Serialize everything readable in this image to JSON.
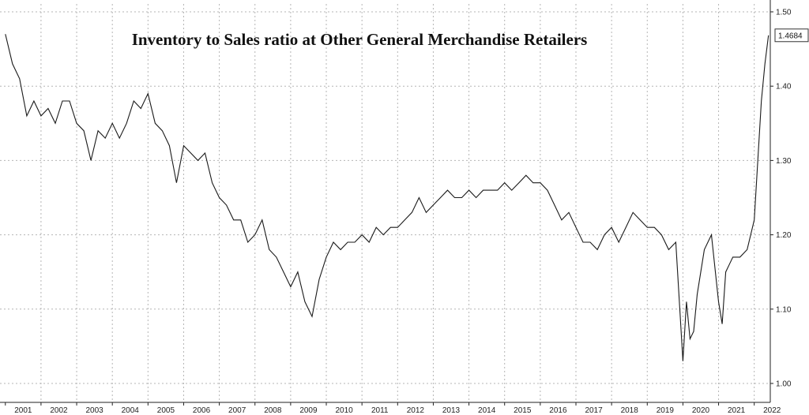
{
  "chart_data": {
    "type": "line",
    "title": "Inventory to Sales ratio at Other General Merchandise Retailers",
    "xlabel": "",
    "ylabel": "",
    "ylim": [
      1.0,
      1.5
    ],
    "y_ticks": [
      "1.00",
      "1.10",
      "1.20",
      "1.30",
      "1.40",
      "1.50"
    ],
    "x_ticks": [
      "2001",
      "2002",
      "2003",
      "2004",
      "2005",
      "2006",
      "2007",
      "2008",
      "2009",
      "2010",
      "2011",
      "2012",
      "2013",
      "2014",
      "2015",
      "2016",
      "2017",
      "2018",
      "2019",
      "2020",
      "2021",
      "2022"
    ],
    "grid": true,
    "last_value_label": "1.4684",
    "series": [
      {
        "name": "Inventory to Sales ratio",
        "x": [
          2001.0,
          2001.2,
          2001.4,
          2001.6,
          2001.8,
          2002.0,
          2002.2,
          2002.4,
          2002.6,
          2002.8,
          2003.0,
          2003.2,
          2003.4,
          2003.6,
          2003.8,
          2004.0,
          2004.2,
          2004.4,
          2004.6,
          2004.8,
          2005.0,
          2005.2,
          2005.4,
          2005.6,
          2005.8,
          2006.0,
          2006.2,
          2006.4,
          2006.6,
          2006.8,
          2007.0,
          2007.2,
          2007.4,
          2007.6,
          2007.8,
          2008.0,
          2008.2,
          2008.4,
          2008.6,
          2008.8,
          2009.0,
          2009.2,
          2009.4,
          2009.6,
          2009.8,
          2010.0,
          2010.2,
          2010.4,
          2010.6,
          2010.8,
          2011.0,
          2011.2,
          2011.4,
          2011.6,
          2011.8,
          2012.0,
          2012.2,
          2012.4,
          2012.6,
          2012.8,
          2013.0,
          2013.2,
          2013.4,
          2013.6,
          2013.8,
          2014.0,
          2014.2,
          2014.4,
          2014.6,
          2014.8,
          2015.0,
          2015.2,
          2015.4,
          2015.6,
          2015.8,
          2016.0,
          2016.2,
          2016.4,
          2016.6,
          2016.8,
          2017.0,
          2017.2,
          2017.4,
          2017.6,
          2017.8,
          2018.0,
          2018.2,
          2018.4,
          2018.6,
          2018.8,
          2019.0,
          2019.2,
          2019.4,
          2019.6,
          2019.8,
          2020.0,
          2020.1,
          2020.2,
          2020.3,
          2020.4,
          2020.6,
          2020.8,
          2021.0,
          2021.1,
          2021.2,
          2021.3,
          2021.4,
          2021.6,
          2021.8,
          2022.0,
          2022.1,
          2022.2,
          2022.3,
          2022.4
        ],
        "values": [
          1.47,
          1.43,
          1.41,
          1.36,
          1.38,
          1.36,
          1.37,
          1.35,
          1.38,
          1.38,
          1.35,
          1.34,
          1.3,
          1.34,
          1.33,
          1.35,
          1.33,
          1.35,
          1.38,
          1.37,
          1.39,
          1.35,
          1.34,
          1.32,
          1.27,
          1.32,
          1.31,
          1.3,
          1.31,
          1.27,
          1.25,
          1.24,
          1.22,
          1.22,
          1.19,
          1.2,
          1.22,
          1.18,
          1.17,
          1.15,
          1.13,
          1.15,
          1.11,
          1.09,
          1.14,
          1.17,
          1.19,
          1.18,
          1.19,
          1.19,
          1.2,
          1.19,
          1.21,
          1.2,
          1.21,
          1.21,
          1.22,
          1.23,
          1.25,
          1.23,
          1.24,
          1.25,
          1.26,
          1.25,
          1.25,
          1.26,
          1.25,
          1.26,
          1.26,
          1.26,
          1.27,
          1.26,
          1.27,
          1.28,
          1.27,
          1.27,
          1.26,
          1.24,
          1.22,
          1.23,
          1.21,
          1.19,
          1.19,
          1.18,
          1.2,
          1.21,
          1.19,
          1.21,
          1.23,
          1.22,
          1.21,
          1.21,
          1.2,
          1.18,
          1.19,
          1.03,
          1.11,
          1.06,
          1.07,
          1.12,
          1.18,
          1.2,
          1.11,
          1.08,
          1.15,
          1.16,
          1.17,
          1.17,
          1.18,
          1.22,
          1.3,
          1.38,
          1.43,
          1.4684
        ]
      }
    ]
  }
}
